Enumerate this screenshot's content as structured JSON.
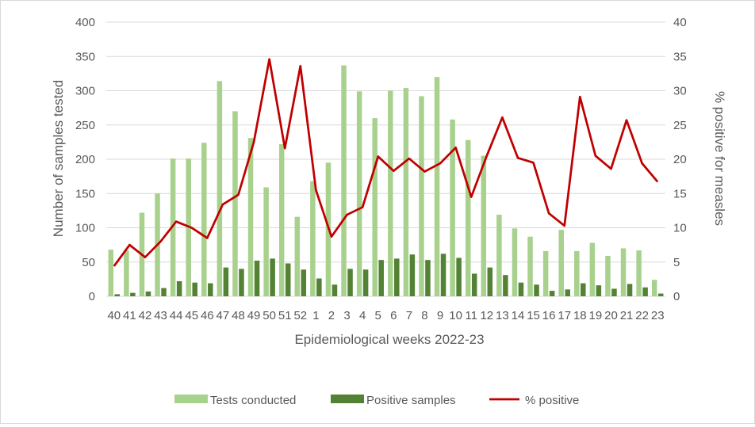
{
  "chart_data": {
    "type": "bar",
    "title": "",
    "xlabel": "Epidemiological weeks 2022-23",
    "ylabel": "Number of samples tested",
    "y2label": "% positive for measles",
    "ylim": [
      0,
      400
    ],
    "y2lim": [
      0,
      40
    ],
    "yticks": [
      "0",
      "50",
      "100",
      "150",
      "200",
      "250",
      "300",
      "350",
      "400"
    ],
    "y2ticks": [
      "0",
      "5",
      "10",
      "15",
      "20",
      "25",
      "30",
      "35",
      "40"
    ],
    "grid": true,
    "legend_position": "bottom",
    "categories": [
      "40",
      "41",
      "42",
      "43",
      "44",
      "45",
      "46",
      "47",
      "48",
      "49",
      "50",
      "51",
      "52",
      "1",
      "2",
      "3",
      "4",
      "5",
      "6",
      "7",
      "8",
      "9",
      "10",
      "11",
      "12",
      "13",
      "14",
      "15",
      "16",
      "17",
      "18",
      "19",
      "20",
      "21",
      "22",
      "23"
    ],
    "series": [
      {
        "name": "Tests conducted",
        "kind": "bar",
        "color": "#a9d18e",
        "values": [
          68,
          67,
          122,
          150,
          201,
          201,
          224,
          314,
          270,
          231,
          159,
          222,
          116,
          168,
          195,
          337,
          299,
          260,
          300,
          304,
          292,
          320,
          258,
          228,
          205,
          119,
          99,
          87,
          66,
          97,
          66,
          78,
          59,
          70,
          67,
          24
        ]
      },
      {
        "name": "Positive samples",
        "kind": "bar",
        "color": "#548235",
        "values": [
          3,
          5,
          7,
          12,
          22,
          20,
          19,
          42,
          40,
          52,
          55,
          48,
          39,
          26,
          17,
          40,
          39,
          53,
          55,
          61,
          53,
          62,
          56,
          33,
          42,
          31,
          20,
          17,
          8,
          10,
          19,
          16,
          11,
          18,
          13,
          4
        ]
      },
      {
        "name": "% positive",
        "kind": "line",
        "axis": "right",
        "color": "#c00000",
        "values": [
          4.4,
          7.5,
          5.7,
          8.0,
          10.9,
          10.0,
          8.5,
          13.4,
          14.8,
          22.5,
          34.6,
          21.6,
          33.6,
          15.5,
          8.7,
          11.9,
          13.0,
          20.4,
          18.3,
          20.1,
          18.2,
          19.4,
          21.7,
          14.5,
          20.5,
          26.1,
          20.2,
          19.5,
          12.1,
          10.3,
          29.1,
          20.5,
          18.6,
          25.7,
          19.4,
          16.7
        ]
      }
    ]
  }
}
